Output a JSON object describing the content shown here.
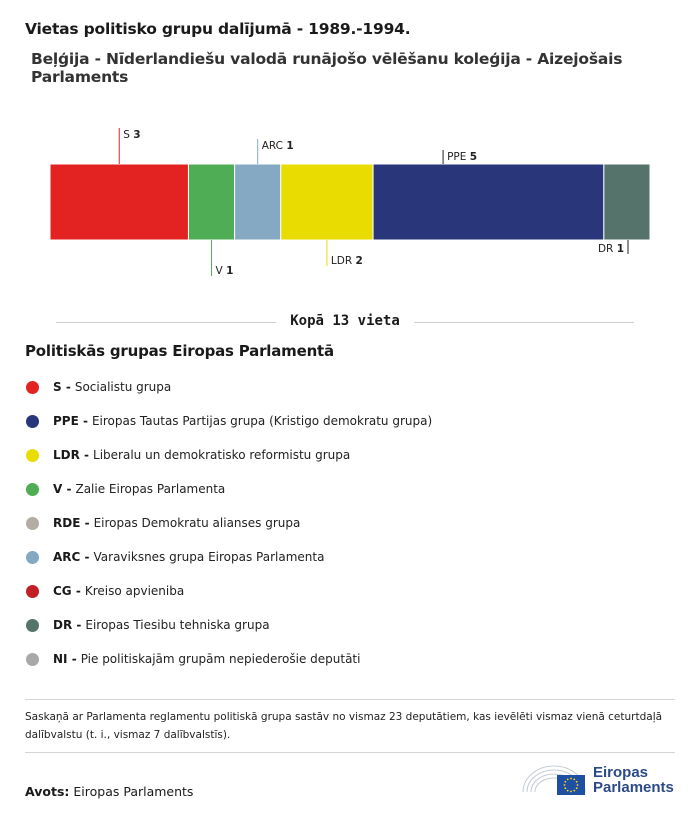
{
  "header": {
    "title": "Vietas politisko grupu dalījumā - 1989.-1994.",
    "subtitle": "Beļģija - Nīderlandiešu valodā runājošo vēlēšanu koleģija - Aizejošais Parlaments"
  },
  "chart_data": {
    "type": "bar",
    "orientation": "stacked-horizontal",
    "categories": [
      "S",
      "V",
      "ARC",
      "LDR",
      "PPE",
      "DR"
    ],
    "values": [
      3,
      1,
      1,
      2,
      5,
      1
    ],
    "colors": [
      "#e32322",
      "#4fae55",
      "#85a9c3",
      "#e9dc00",
      "#293679",
      "#56736b"
    ],
    "label_positions": [
      "top",
      "bottom",
      "top",
      "bottom",
      "top",
      "bottom"
    ],
    "total_label": "Kopā 13 vieta"
  },
  "legend": {
    "title": "Politiskās grupas Eiropas Parlamentā",
    "items": [
      {
        "code": "S",
        "name": "Socialistu grupa",
        "color": "#e32322"
      },
      {
        "code": "PPE",
        "name": "Eiropas Tautas Partijas grupa (Kristigo demokratu grupa)",
        "color": "#293679"
      },
      {
        "code": "LDR",
        "name": "Liberalu un demokratisko reformistu grupa",
        "color": "#e9dc00"
      },
      {
        "code": "V",
        "name": "Zalie Eiropas Parlamenta",
        "color": "#4fae55"
      },
      {
        "code": "RDE",
        "name": "Eiropas Demokratu alianses grupa",
        "color": "#b3aca0"
      },
      {
        "code": "ARC",
        "name": "Varaviksnes grupa Eiropas Parlamenta",
        "color": "#85a9c3"
      },
      {
        "code": "CG",
        "name": "Kreiso apvieniba",
        "color": "#c12126"
      },
      {
        "code": "DR",
        "name": "Eiropas Tiesibu tehniska grupa",
        "color": "#56736b"
      },
      {
        "code": "NI",
        "name": "Pie politiskajām grupām nepiederošie deputāti",
        "color": "#a8a8a8"
      }
    ]
  },
  "footer": {
    "note": "Saskaņā ar Parlamenta reglamentu politiskā grupa sastāv no vismaz 23 deputātiem, kas ievēlēti vismaz vienā ceturtdaļā dalībvalstu (t. i., vismaz 7 dalībvalstīs).",
    "source_label": "Avots:",
    "source_value": "Eiropas Parlaments",
    "logo_line1": "Eiropas",
    "logo_line2": "Parlaments"
  }
}
